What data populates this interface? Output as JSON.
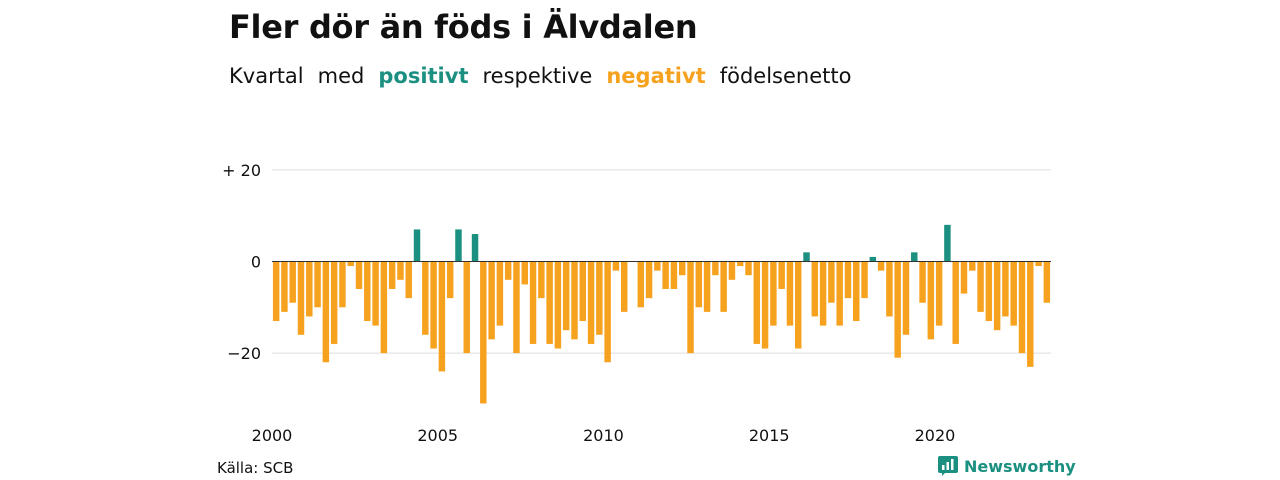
{
  "title": "Fler dör än föds i Älvdalen",
  "subtitle": {
    "w1": "Kvartal",
    "w2": "med",
    "positive": "positivt",
    "w3": "respektive",
    "negative": "negativt",
    "w4": "födelsenetto"
  },
  "colors": {
    "positive": "#1b9080",
    "negative": "#f6a21f",
    "grid": "#dddddd",
    "text": "#111111"
  },
  "source": "Källa: SCB",
  "brand": {
    "name": "Newsworthy",
    "icon": "newsworthy-logo-icon"
  },
  "chart_data": {
    "type": "bar",
    "y_ticks": [
      {
        "value": 20,
        "label": "+ 20"
      },
      {
        "value": 0,
        "label": "0"
      },
      {
        "value": -20,
        "label": "−20"
      }
    ],
    "x_ticks": [
      "2000",
      "2005",
      "2010",
      "2015",
      "2020"
    ],
    "ylim": [
      -33,
      22
    ],
    "x_start": 2000,
    "periods_per_year": 4,
    "values": [
      -13,
      -11,
      -9,
      -16,
      -12,
      -10,
      -22,
      -18,
      -10,
      -1,
      -6,
      -13,
      -14,
      -20,
      -6,
      -4,
      -8,
      7,
      -16,
      -19,
      -24,
      -8,
      7,
      -20,
      6,
      -31,
      -17,
      -14,
      -4,
      -20,
      -5,
      -18,
      -8,
      -18,
      -19,
      -15,
      -17,
      -13,
      -18,
      -16,
      -22,
      -2,
      -11,
      0,
      -10,
      -8,
      -2,
      -6,
      -6,
      -3,
      -20,
      -10,
      -11,
      -3,
      -11,
      -4,
      -1,
      -3,
      -18,
      -19,
      -14,
      -6,
      -14,
      -19,
      2,
      -12,
      -14,
      -9,
      -14,
      -8,
      -13,
      -8,
      1,
      -2,
      -12,
      -21,
      -16,
      2,
      -9,
      -17,
      -14,
      8,
      -18,
      -7,
      -2,
      -11,
      -13,
      -15,
      -12,
      -14,
      -20,
      -23,
      -1,
      -9
    ]
  }
}
